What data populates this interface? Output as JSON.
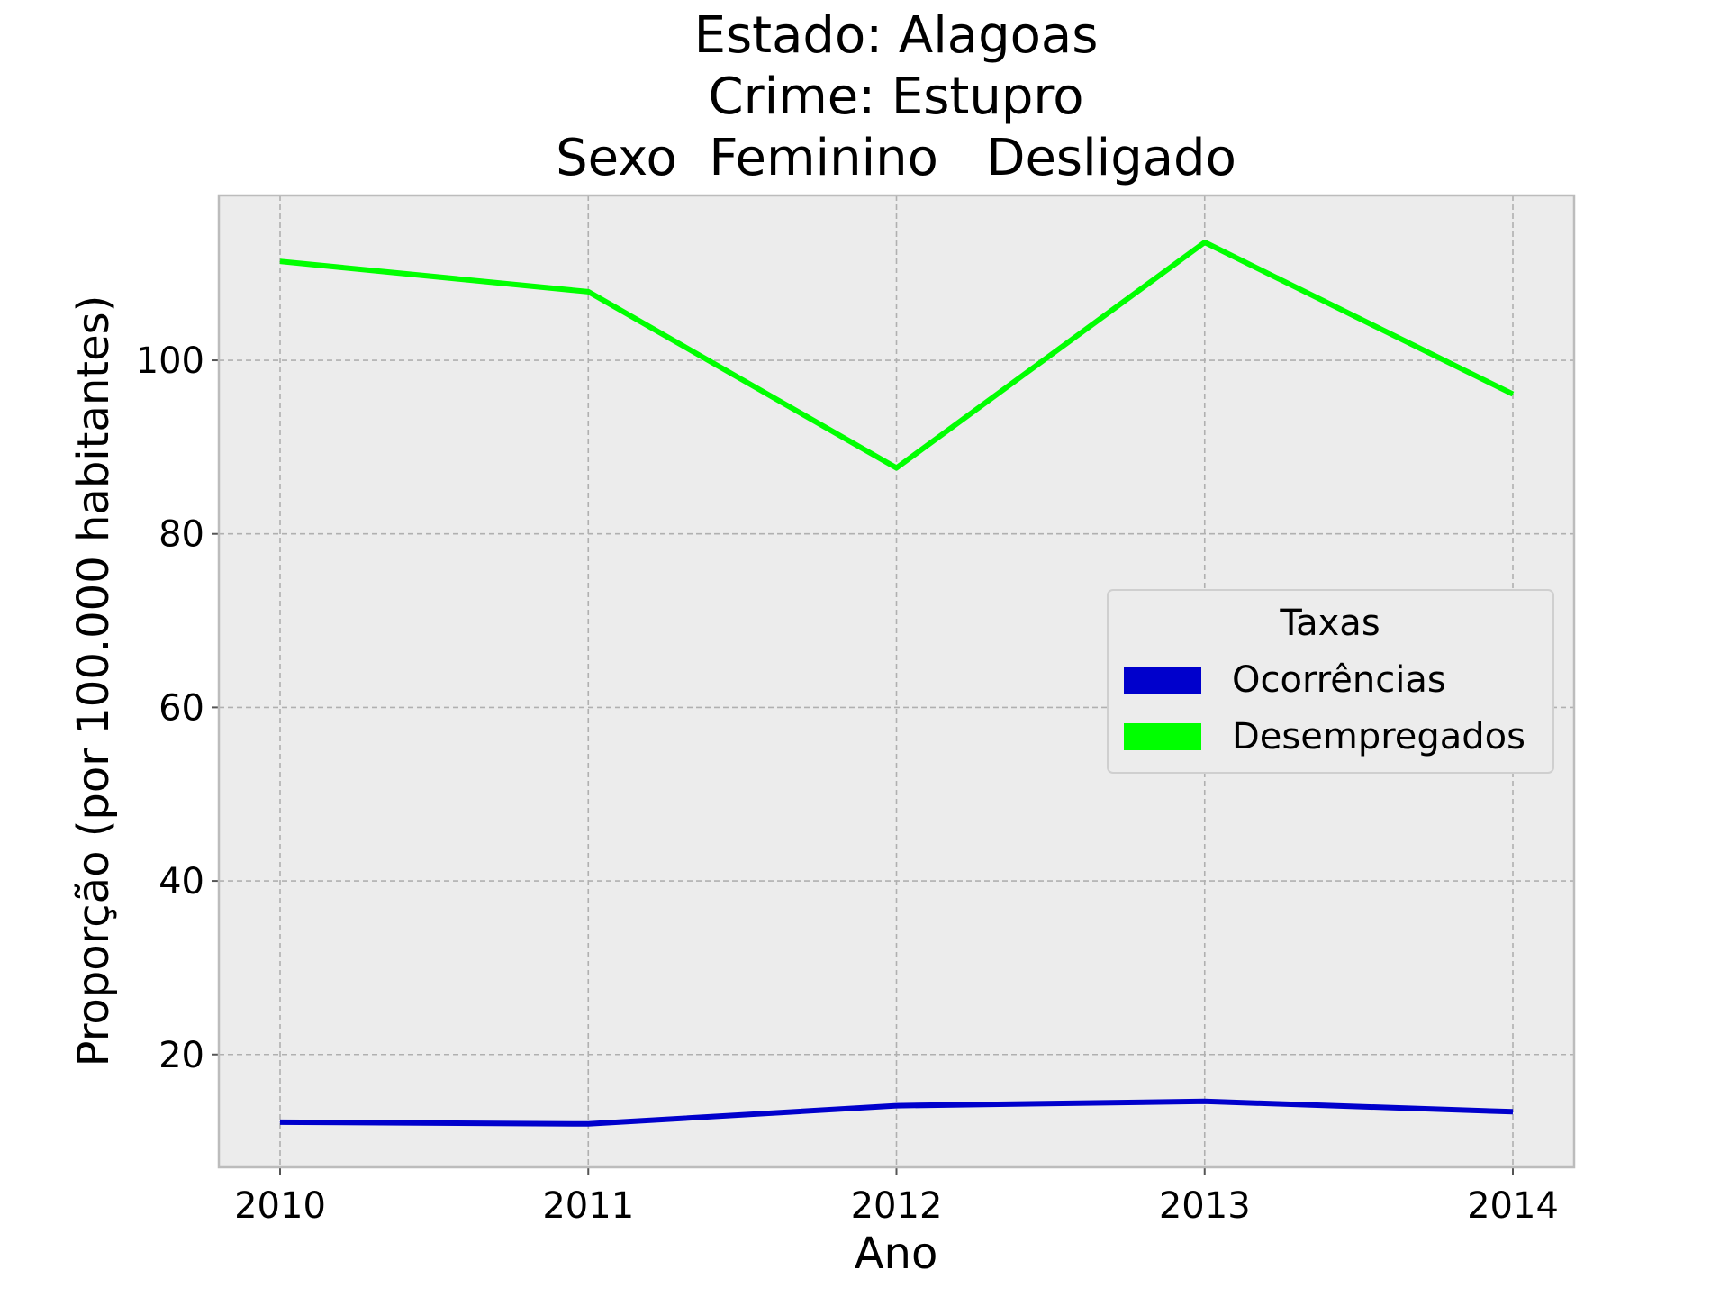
{
  "chart_data": {
    "type": "line",
    "title_lines": [
      "Estado: Alagoas",
      "Crime: Estupro",
      "Sexo  Feminino   Desligado"
    ],
    "xlabel": "Ano",
    "ylabel": "Proporção (por 100.000 habitantes)",
    "x": [
      "2010",
      "2011",
      "2012",
      "2013",
      "2014"
    ],
    "ylim": [
      7,
      119
    ],
    "yticks": [
      20,
      40,
      60,
      80,
      100
    ],
    "grid": true,
    "legend": {
      "title": "Taxas",
      "position": "center-right"
    },
    "series": [
      {
        "name": "Ocorrências",
        "color": "#0000cc",
        "values": [
          12.2,
          12.0,
          14.1,
          14.6,
          13.4
        ]
      },
      {
        "name": "Desempregados",
        "color": "#00ff00",
        "values": [
          111.4,
          107.9,
          87.6,
          113.6,
          96.1
        ]
      }
    ]
  },
  "colors": {
    "plot_background": "#ececec",
    "axes_edge": "#bcbcbc"
  }
}
